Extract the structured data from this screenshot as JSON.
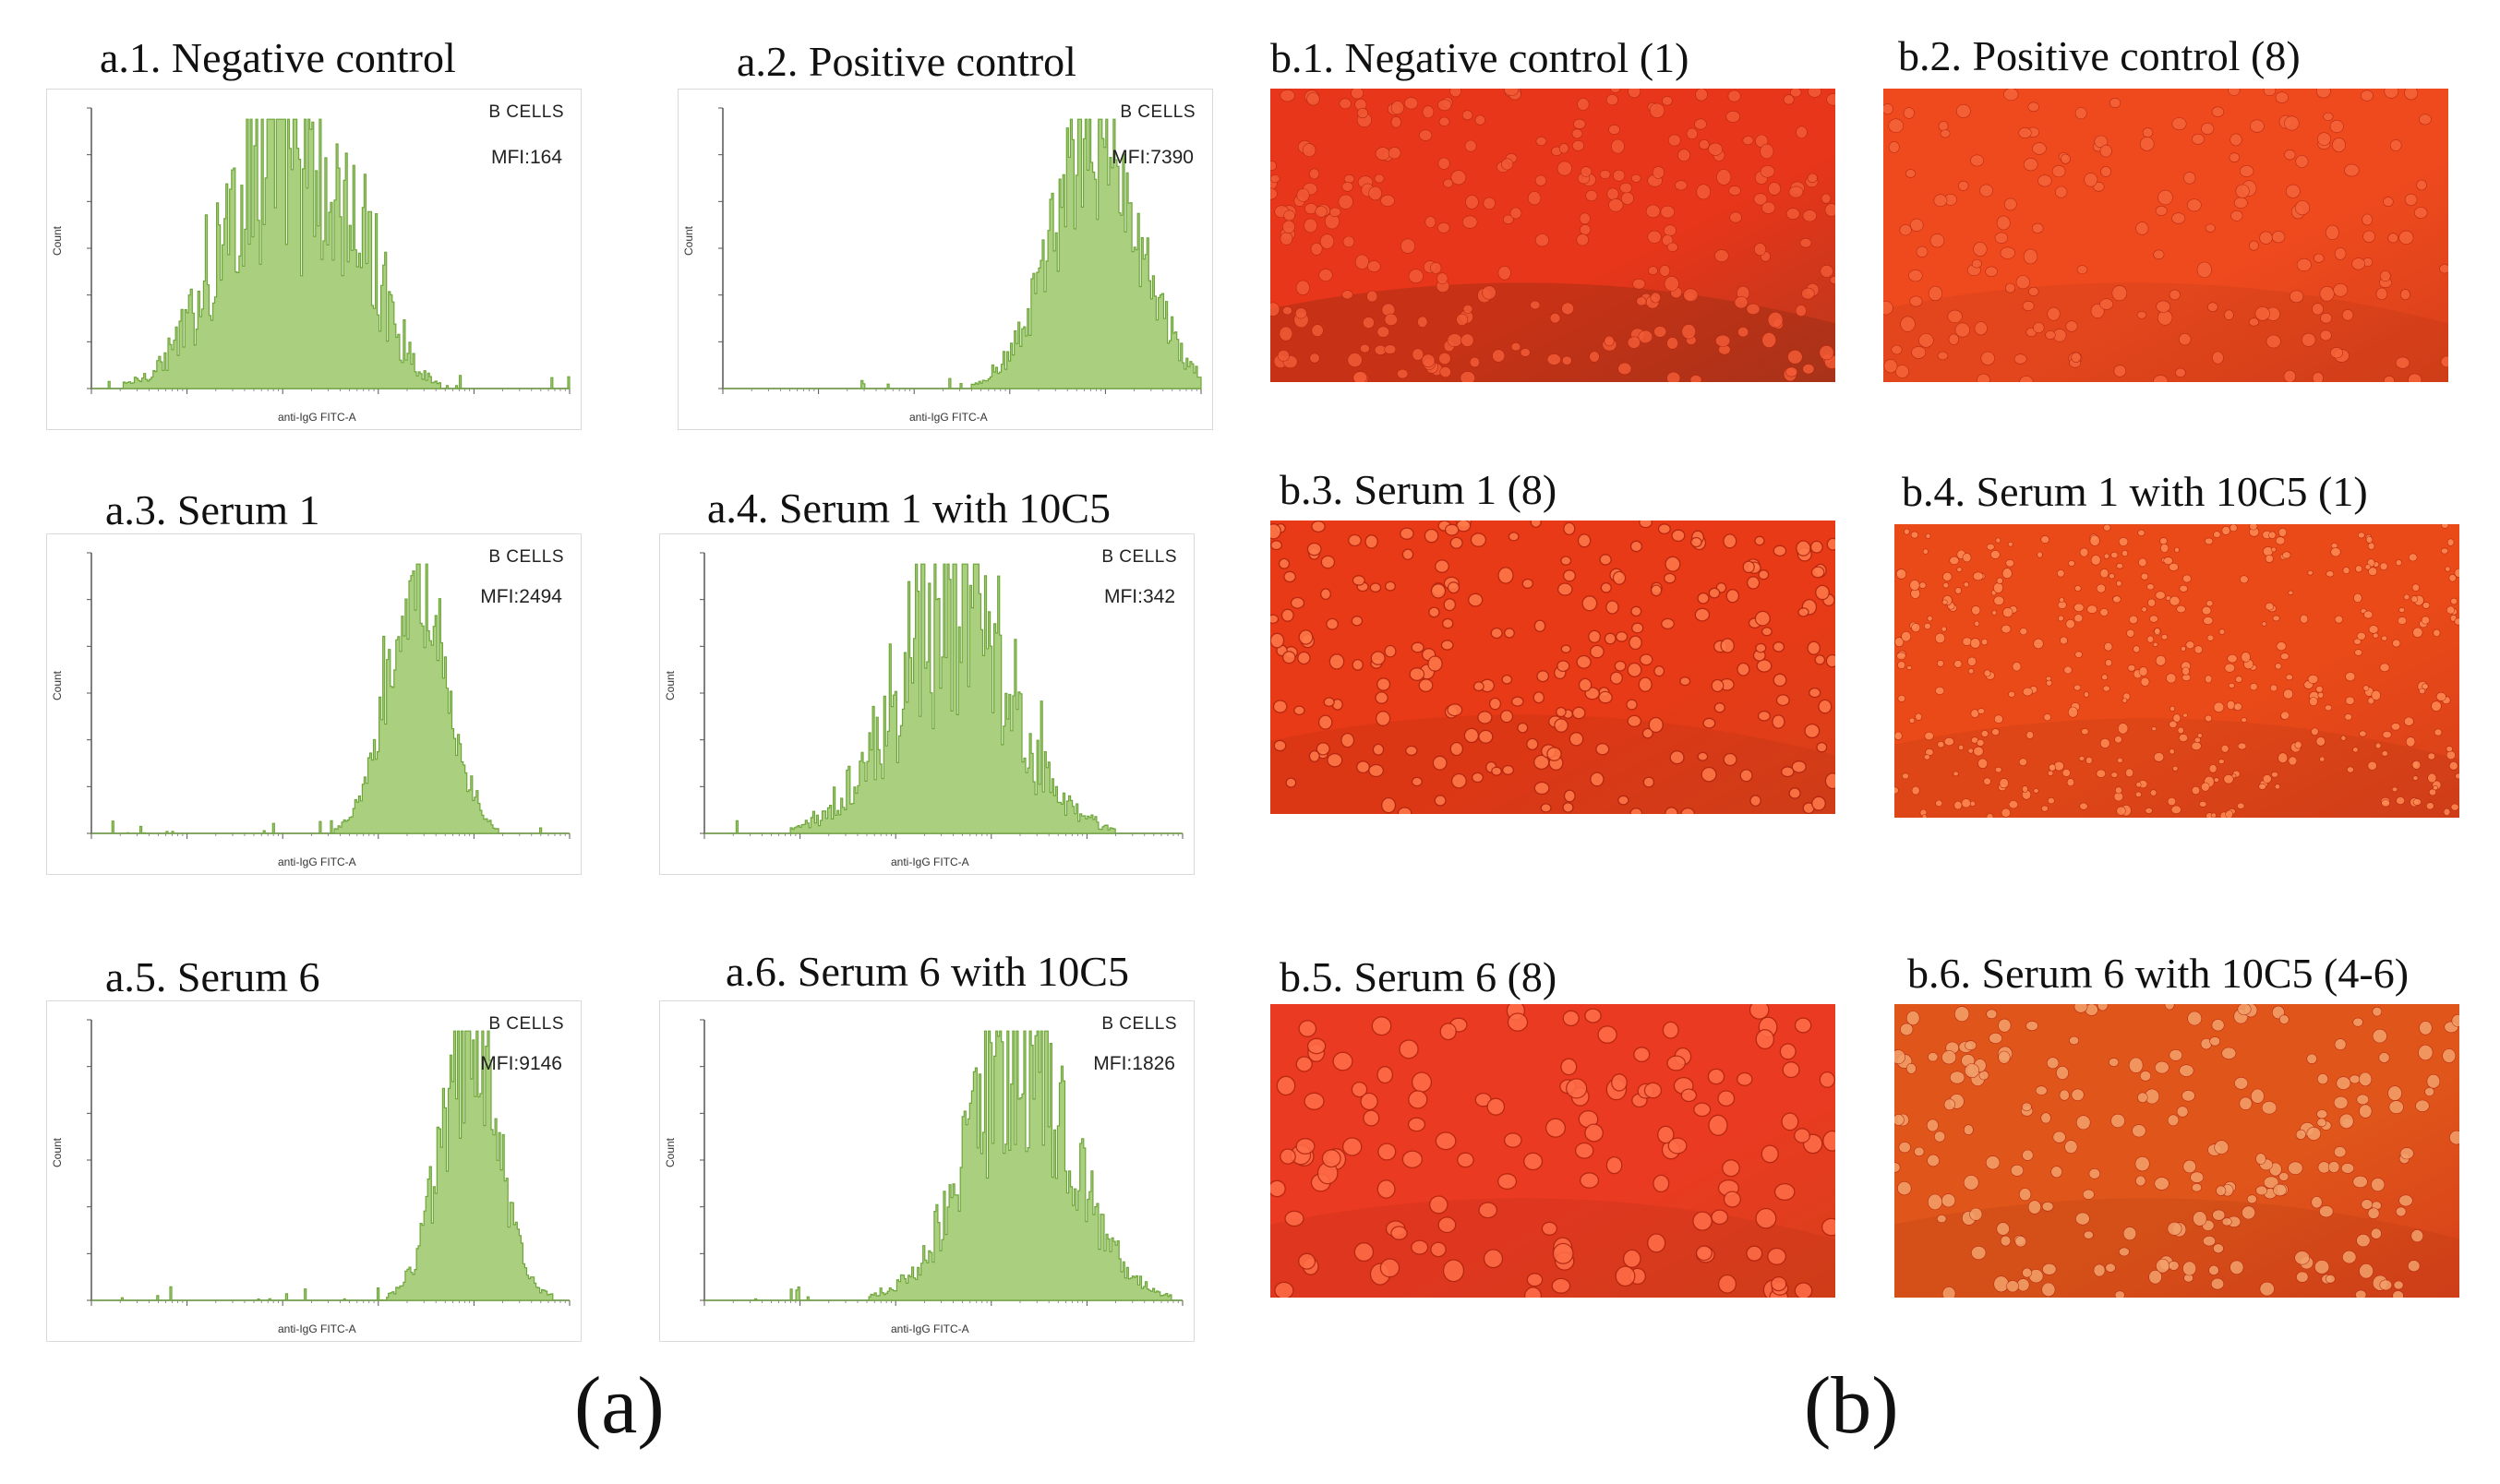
{
  "figure": {
    "panel_a_label": "(a)",
    "panel_b_label": "(b)"
  },
  "histograms": [
    {
      "title": "a.1. Negative control",
      "gate": "B CELLS",
      "mfi": "MFI:164",
      "xlabel": "anti-IgG FITC-A",
      "ylabel": "Count"
    },
    {
      "title": "a.2. Positive control",
      "gate": "B CELLS",
      "mfi": "MFI:7390",
      "xlabel": "anti-IgG FITC-A",
      "ylabel": "Count"
    },
    {
      "title": "a.3. Serum 1",
      "gate": "B CELLS",
      "mfi": "MFI:2494",
      "xlabel": "anti-IgG FITC-A",
      "ylabel": "Count"
    },
    {
      "title": "a.4. Serum 1 with 10C5",
      "gate": "B CELLS",
      "mfi": "MFI:342",
      "xlabel": "anti-IgG FITC-A",
      "ylabel": "Count"
    },
    {
      "title": "a.5. Serum 6",
      "gate": "B CELLS",
      "mfi": "MFI:9146",
      "xlabel": "anti-IgG FITC-A",
      "ylabel": "Count"
    },
    {
      "title": "a.6. Serum 6 with 10C5",
      "gate": "B CELLS",
      "mfi": "MFI:1826",
      "xlabel": "anti-IgG FITC-A",
      "ylabel": "Count"
    }
  ],
  "micrographs": [
    {
      "title": "b.1. Negative control (1)"
    },
    {
      "title": "b.2. Positive control (8)"
    },
    {
      "title": "b.3. Serum 1 (8)"
    },
    {
      "title": "b.4. Serum 1 with 10C5 (1)"
    },
    {
      "title": "b.5. Serum 6 (8)"
    },
    {
      "title": "b.6. Serum 6 with 10C5 (4-6)"
    }
  ],
  "chart_data": [
    {
      "type": "area",
      "title": "a.1. Negative control",
      "xlabel": "anti-IgG FITC-A",
      "ylabel": "Count",
      "xscale": "log",
      "xlim": [
        1,
        100000
      ],
      "peaks": [
        {
          "center_log": 1.9,
          "width_log": 0.55,
          "height": 0.9
        },
        {
          "center_log": 2.85,
          "width_log": 0.3,
          "height": 0.35
        }
      ],
      "noise": 0.5,
      "mfi": 164
    },
    {
      "type": "area",
      "title": "a.2. Positive control",
      "xlabel": "anti-IgG FITC-A",
      "ylabel": "Count",
      "xscale": "log",
      "xlim": [
        1,
        100000
      ],
      "peaks": [
        {
          "center_log": 3.9,
          "width_log": 0.45,
          "height": 0.95
        }
      ],
      "noise": 0.35,
      "mfi": 7390
    },
    {
      "type": "area",
      "title": "a.3. Serum 1",
      "xlabel": "anti-IgG FITC-A",
      "ylabel": "Count",
      "xscale": "log",
      "xlim": [
        1,
        100000
      ],
      "peaks": [
        {
          "center_log": 3.4,
          "width_log": 0.3,
          "height": 0.95
        }
      ],
      "noise": 0.25,
      "mfi": 2494
    },
    {
      "type": "area",
      "title": "a.4. Serum 1 with 10C5",
      "xlabel": "anti-IgG FITC-A",
      "ylabel": "Count",
      "xscale": "log",
      "xlim": [
        1,
        100000
      ],
      "peaks": [
        {
          "center_log": 2.6,
          "width_log": 0.6,
          "height": 0.85
        }
      ],
      "noise": 0.55,
      "mfi": 342
    },
    {
      "type": "area",
      "title": "a.5. Serum 6",
      "xlabel": "anti-IgG FITC-A",
      "ylabel": "Count",
      "xscale": "log",
      "xlim": [
        1,
        100000
      ],
      "peaks": [
        {
          "center_log": 3.95,
          "width_log": 0.3,
          "height": 0.95
        }
      ],
      "noise": 0.35,
      "mfi": 9146
    },
    {
      "type": "area",
      "title": "a.6. Serum 6 with 10C5",
      "xlabel": "anti-IgG FITC-A",
      "ylabel": "Count",
      "xscale": "log",
      "xlim": [
        1,
        100000
      ],
      "peaks": [
        {
          "center_log": 3.3,
          "width_log": 0.55,
          "height": 0.9
        }
      ],
      "noise": 0.4,
      "mfi": 1826
    }
  ],
  "colors": {
    "hist_fill": "#a9cf7f",
    "hist_stroke": "#6fa63a",
    "micro_base": [
      "#e8361a",
      "#ef4a1e",
      "#e83a16",
      "#ea4a18",
      "#eb3a22",
      "#e0561a"
    ],
    "micro_cell": [
      "#f25a35",
      "#f6643a",
      "#ff7a4a",
      "#ff8a52",
      "#ff6e48",
      "#f3a06a"
    ]
  }
}
